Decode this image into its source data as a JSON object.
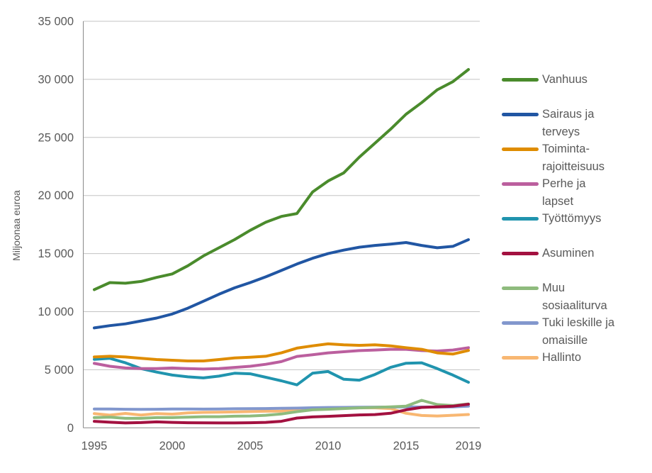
{
  "chart_data": {
    "type": "line",
    "title": "",
    "xlabel": "",
    "ylabel": "Miljoonaa euroa",
    "unit": "Miljoonaa euroa",
    "x": [
      1995,
      1996,
      1997,
      1998,
      1999,
      2000,
      2001,
      2002,
      2003,
      2004,
      2005,
      2006,
      2007,
      2008,
      2009,
      2010,
      2011,
      2012,
      2013,
      2014,
      2015,
      2016,
      2017,
      2018,
      2019
    ],
    "x_ticks": [
      1995,
      2000,
      2005,
      2010,
      2015,
      2019
    ],
    "x_tick_labels": [
      "1995",
      "2000",
      "2005",
      "2010",
      "2015",
      "2019"
    ],
    "y_ticks": [
      0,
      5000,
      10000,
      15000,
      20000,
      25000,
      30000,
      35000
    ],
    "y_tick_labels": [
      "0",
      "5 000",
      "10 000",
      "15 000",
      "20 000",
      "25 000",
      "30 000",
      "35 000"
    ],
    "ylim": [
      0,
      35000
    ],
    "grid": "horizontal",
    "legend_position": "right",
    "colors": {
      "text": "#595959",
      "gridline": "#c3c3c3",
      "axis": "#8a8a8a"
    },
    "series": [
      {
        "name": "Vanhuus",
        "label": "Vanhuus",
        "color": "#4a8b2c",
        "values": [
          11900,
          12500,
          12450,
          12600,
          12950,
          13250,
          13950,
          14800,
          15500,
          16200,
          17000,
          17700,
          18200,
          18450,
          20300,
          21250,
          21950,
          23300,
          24500,
          25700,
          27000,
          28000,
          29100,
          29800,
          30850
        ]
      },
      {
        "name": "Sairaus ja terveys",
        "label": "Sairaus ja\nterveys",
        "color": "#2156a3",
        "values": [
          8600,
          8800,
          8950,
          9200,
          9450,
          9800,
          10300,
          10900,
          11500,
          12050,
          12500,
          13000,
          13550,
          14100,
          14600,
          15000,
          15300,
          15550,
          15700,
          15820,
          15950,
          15700,
          15500,
          15620,
          16200
        ]
      },
      {
        "name": "Toimintarajoitteisuus",
        "label": "Toiminta-\nrajoitteisuus",
        "color": "#df8c00",
        "values": [
          6100,
          6160,
          6100,
          5980,
          5880,
          5820,
          5760,
          5760,
          5880,
          6020,
          6080,
          6160,
          6450,
          6860,
          7060,
          7230,
          7140,
          7100,
          7140,
          7060,
          6900,
          6760,
          6450,
          6350,
          6660
        ]
      },
      {
        "name": "Perhe ja lapset",
        "label": "Perhe ja\nlapset",
        "color": "#bb5f9e",
        "values": [
          5550,
          5300,
          5150,
          5100,
          5100,
          5150,
          5100,
          5060,
          5100,
          5200,
          5300,
          5470,
          5700,
          6150,
          6290,
          6450,
          6550,
          6650,
          6700,
          6760,
          6760,
          6650,
          6610,
          6700,
          6900
        ]
      },
      {
        "name": "Työttömyys",
        "label": "Työttömyys",
        "color": "#2094ae",
        "values": [
          5900,
          5980,
          5600,
          5100,
          4800,
          4540,
          4390,
          4300,
          4450,
          4700,
          4650,
          4350,
          4050,
          3700,
          4700,
          4850,
          4180,
          4100,
          4590,
          5200,
          5560,
          5600,
          5100,
          4540,
          3920
        ]
      },
      {
        "name": "Asuminen",
        "label": "Asuminen",
        "color": "#a31140",
        "values": [
          560,
          480,
          420,
          450,
          510,
          470,
          440,
          430,
          420,
          420,
          440,
          470,
          560,
          840,
          940,
          990,
          1050,
          1110,
          1140,
          1250,
          1550,
          1760,
          1800,
          1860,
          2030
        ]
      },
      {
        "name": "Muu sosiaaliturva",
        "label": "Muu\nsosiaaliturva",
        "color": "#8ebb7d",
        "values": [
          880,
          920,
          820,
          820,
          880,
          880,
          920,
          960,
          960,
          1000,
          1020,
          1080,
          1190,
          1390,
          1550,
          1600,
          1660,
          1720,
          1760,
          1800,
          1860,
          2370,
          2000,
          1920,
          2060
        ]
      },
      {
        "name": "Tuki leskille ja omaisille",
        "label": "Tuki leskille ja\nomaisille",
        "color": "#8297cd",
        "values": [
          1620,
          1615,
          1600,
          1595,
          1600,
          1620,
          1615,
          1610,
          1620,
          1640,
          1650,
          1660,
          1680,
          1700,
          1730,
          1750,
          1760,
          1770,
          1780,
          1790,
          1800,
          1790,
          1795,
          1810,
          1860
        ]
      },
      {
        "name": "Hallinto",
        "label": "Hallinto",
        "color": "#f8b772",
        "values": [
          1230,
          1090,
          1240,
          1100,
          1230,
          1180,
          1280,
          1330,
          1350,
          1370,
          1400,
          1430,
          1440,
          1600,
          1660,
          1660,
          1700,
          1720,
          1720,
          1660,
          1250,
          1060,
          1020,
          1080,
          1150
        ]
      }
    ]
  }
}
